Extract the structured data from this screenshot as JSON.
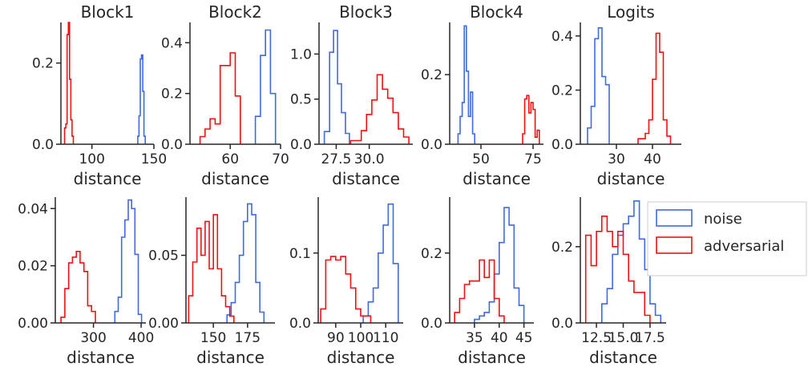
{
  "figure": {
    "legend": {
      "placement": "right",
      "entries": [
        {
          "label": "noise",
          "color": "#4169e1"
        },
        {
          "label": "adversarial",
          "color": "#ee1111"
        }
      ]
    }
  },
  "chart_data": [
    {
      "type": "histogram-step",
      "title": "Block1",
      "xlabel": "distance",
      "ylabel": "",
      "xlim": [
        75,
        150
      ],
      "ylim": [
        0,
        0.3
      ],
      "xticks": [
        100,
        150
      ],
      "yticks": [
        0.0,
        0.2
      ],
      "xtick_labels": [
        "100",
        "150"
      ],
      "ytick_labels": [
        "0.0",
        "0.2"
      ],
      "series": [
        {
          "name": "noise",
          "color": "#4169e1",
          "edges": [
            137,
            138,
            139,
            140,
            141,
            142,
            143
          ],
          "values": [
            0.02,
            0.07,
            0.21,
            0.22,
            0.13,
            0.02
          ]
        },
        {
          "name": "adversarial",
          "color": "#ee1111",
          "edges": [
            78,
            79,
            80,
            81,
            82,
            83,
            84,
            85
          ],
          "values": [
            0.04,
            0.05,
            0.27,
            0.3,
            0.16,
            0.06,
            0.02
          ]
        }
      ]
    },
    {
      "type": "histogram-step",
      "title": "Block2",
      "xlabel": "distance",
      "ylabel": "",
      "xlim": [
        52,
        70
      ],
      "ylim": [
        0,
        0.48
      ],
      "xticks": [
        60,
        70
      ],
      "yticks": [
        0.0,
        0.2,
        0.4
      ],
      "xtick_labels": [
        "60",
        "70"
      ],
      "ytick_labels": [
        "0.0",
        "0.2",
        "0.4"
      ],
      "series": [
        {
          "name": "noise",
          "color": "#4169e1",
          "edges": [
            65,
            66,
            67,
            68,
            69
          ],
          "values": [
            0.11,
            0.35,
            0.45,
            0.2
          ]
        },
        {
          "name": "adversarial",
          "color": "#ee1111",
          "edges": [
            54,
            55,
            56,
            57,
            58,
            59,
            60,
            61,
            62
          ],
          "values": [
            0.03,
            0.06,
            0.1,
            0.08,
            0.31,
            0.31,
            0.36,
            0.19
          ]
        }
      ]
    },
    {
      "type": "histogram-step",
      "title": "Block3",
      "xlabel": "distance",
      "ylabel": "",
      "xlim": [
        26.2,
        33.3
      ],
      "ylim": [
        0,
        1.35
      ],
      "xticks": [
        27.5,
        30.0
      ],
      "yticks": [
        0.0,
        0.5,
        1.0
      ],
      "xtick_labels": [
        "27.5",
        "30.0"
      ],
      "ytick_labels": [
        "0.0",
        "0.5",
        "1.0"
      ],
      "series": [
        {
          "name": "noise",
          "color": "#4169e1",
          "edges": [
            26.6,
            27.0,
            27.3,
            27.6,
            27.9,
            28.2,
            28.5
          ],
          "values": [
            0.14,
            1.02,
            1.26,
            0.67,
            0.35,
            0.12
          ]
        },
        {
          "name": "adversarial",
          "color": "#ee1111",
          "edges": [
            28.6,
            29.0,
            29.4,
            29.8,
            30.2,
            30.6,
            31.0,
            31.4,
            31.8,
            32.2,
            32.6,
            33.0
          ],
          "values": [
            0.04,
            0.04,
            0.15,
            0.33,
            0.49,
            0.77,
            0.61,
            0.51,
            0.35,
            0.17,
            0.08
          ]
        }
      ]
    },
    {
      "type": "histogram-step",
      "title": "Block4",
      "xlabel": "distance",
      "ylabel": "",
      "xlim": [
        35,
        80
      ],
      "ylim": [
        0,
        0.35
      ],
      "xticks": [
        50,
        75
      ],
      "yticks": [
        0.0,
        0.2
      ],
      "xtick_labels": [
        "50",
        "75"
      ],
      "ytick_labels": [
        "0.0",
        "0.2"
      ],
      "series": [
        {
          "name": "noise",
          "color": "#4169e1",
          "edges": [
            39,
            40,
            41,
            42,
            43,
            44,
            45,
            46,
            47
          ],
          "values": [
            0.03,
            0.08,
            0.12,
            0.34,
            0.21,
            0.08,
            0.15,
            0.03
          ]
        },
        {
          "name": "adversarial",
          "color": "#ee1111",
          "edges": [
            70,
            71,
            72,
            73,
            74,
            75,
            76,
            77,
            78
          ],
          "values": [
            0.03,
            0.13,
            0.14,
            0.09,
            0.12,
            0.1,
            0.02,
            0.04
          ]
        }
      ]
    },
    {
      "type": "histogram-step",
      "title": "Logits",
      "xlabel": "distance",
      "ylabel": "",
      "xlim": [
        20,
        48
      ],
      "ylim": [
        0,
        0.45
      ],
      "xticks": [
        30,
        40
      ],
      "yticks": [
        0.0,
        0.2,
        0.4
      ],
      "xtick_labels": [
        "30",
        "40"
      ],
      "ytick_labels": [
        "0.0",
        "0.2",
        "0.4"
      ],
      "series": [
        {
          "name": "noise",
          "color": "#4169e1",
          "edges": [
            22,
            23,
            24,
            25,
            26,
            27,
            28
          ],
          "values": [
            0.06,
            0.14,
            0.39,
            0.43,
            0.25,
            0.22
          ]
        },
        {
          "name": "adversarial",
          "color": "#ee1111",
          "edges": [
            36,
            37,
            38,
            39,
            40,
            41,
            42,
            43,
            44,
            45
          ],
          "values": [
            0.02,
            0.02,
            0.04,
            0.09,
            0.24,
            0.41,
            0.34,
            0.09,
            0.03
          ]
        }
      ]
    },
    {
      "type": "histogram-step",
      "title": "",
      "xlabel": "distance",
      "ylabel": "",
      "xlim": [
        220,
        410
      ],
      "ylim": [
        0,
        0.044
      ],
      "xticks": [
        300,
        400
      ],
      "yticks": [
        0.0,
        0.02,
        0.04
      ],
      "xtick_labels": [
        "300",
        "400"
      ],
      "ytick_labels": [
        "0.00",
        "0.02",
        "0.04"
      ],
      "series": [
        {
          "name": "noise",
          "color": "#4169e1",
          "edges": [
            345,
            352,
            359,
            366,
            373,
            380,
            387,
            394,
            401
          ],
          "values": [
            0.004,
            0.009,
            0.03,
            0.036,
            0.043,
            0.04,
            0.024,
            0.003
          ]
        },
        {
          "name": "adversarial",
          "color": "#ee1111",
          "edges": [
            232,
            240,
            248,
            256,
            264,
            272,
            280,
            288,
            296,
            304
          ],
          "values": [
            0.002,
            0.012,
            0.021,
            0.023,
            0.025,
            0.021,
            0.018,
            0.006,
            0.004
          ]
        }
      ]
    },
    {
      "type": "histogram-step",
      "title": "",
      "xlabel": "distance",
      "ylabel": "",
      "xlim": [
        130,
        195
      ],
      "ylim": [
        0,
        0.093
      ],
      "xticks": [
        150,
        175
      ],
      "yticks": [
        0.0,
        0.05
      ],
      "xtick_labels": [
        "150",
        "175"
      ],
      "ytick_labels": [
        "0.00",
        "0.05"
      ],
      "series": [
        {
          "name": "noise",
          "color": "#4169e1",
          "edges": [
            160,
            163,
            166,
            169,
            172,
            175,
            178,
            181,
            184,
            187
          ],
          "values": [
            0.006,
            0.015,
            0.03,
            0.05,
            0.075,
            0.088,
            0.08,
            0.03,
            0.008
          ]
        },
        {
          "name": "adversarial",
          "color": "#ee1111",
          "edges": [
            132,
            135,
            138,
            141,
            144,
            147,
            150,
            153,
            156,
            159,
            162,
            165
          ],
          "values": [
            0.02,
            0.045,
            0.07,
            0.05,
            0.075,
            0.04,
            0.08,
            0.04,
            0.02,
            0.012,
            0.005
          ]
        }
      ]
    },
    {
      "type": "histogram-step",
      "title": "",
      "xlabel": "distance",
      "ylabel": "",
      "xlim": [
        83,
        117
      ],
      "ylim": [
        0,
        0.18
      ],
      "xticks": [
        90,
        100,
        110
      ],
      "yticks": [
        0.0,
        0.1
      ],
      "xtick_labels": [
        "90",
        "100",
        "110"
      ],
      "ytick_labels": [
        "0.0",
        "0.1"
      ],
      "series": [
        {
          "name": "noise",
          "color": "#4169e1",
          "edges": [
            101,
            103,
            105,
            107,
            109,
            111,
            113,
            115
          ],
          "values": [
            0.01,
            0.03,
            0.05,
            0.1,
            0.14,
            0.17,
            0.085
          ]
        },
        {
          "name": "adversarial",
          "color": "#ee1111",
          "edges": [
            84,
            86,
            88,
            90,
            92,
            94,
            96,
            98,
            100,
            102,
            104
          ],
          "values": [
            0.02,
            0.09,
            0.095,
            0.09,
            0.095,
            0.07,
            0.05,
            0.02,
            0.01,
            0.01
          ]
        }
      ]
    },
    {
      "type": "histogram-step",
      "title": "",
      "xlabel": "distance",
      "ylabel": "",
      "xlim": [
        30,
        47
      ],
      "ylim": [
        0,
        0.36
      ],
      "xticks": [
        35,
        40,
        45
      ],
      "yticks": [
        0.0,
        0.2
      ],
      "xtick_labels": [
        "35",
        "40",
        "45"
      ],
      "ytick_labels": [
        "0.0",
        "0.2"
      ],
      "series": [
        {
          "name": "noise",
          "color": "#4169e1",
          "edges": [
            35,
            36,
            37,
            38,
            39,
            40,
            41,
            42,
            43,
            44,
            45
          ],
          "values": [
            0.01,
            0.02,
            0.03,
            0.06,
            0.14,
            0.23,
            0.33,
            0.28,
            0.1,
            0.05
          ]
        },
        {
          "name": "adversarial",
          "color": "#ee1111",
          "edges": [
            31,
            32,
            33,
            34,
            35,
            36,
            37,
            38,
            39,
            40,
            41
          ],
          "values": [
            0.03,
            0.07,
            0.11,
            0.12,
            0.12,
            0.18,
            0.13,
            0.18,
            0.07,
            0.02
          ]
        }
      ]
    },
    {
      "type": "histogram-step",
      "title": "",
      "xlabel": "distance",
      "ylabel": "",
      "xlim": [
        11,
        19
      ],
      "ylim": [
        0,
        0.33
      ],
      "xticks": [
        12.5,
        15.0,
        17.5
      ],
      "yticks": [
        0.0,
        0.2
      ],
      "xtick_labels": [
        "12.5",
        "15.0",
        "17.5"
      ],
      "ytick_labels": [
        "0.0",
        "0.2"
      ],
      "series": [
        {
          "name": "noise",
          "color": "#4169e1",
          "edges": [
            13.0,
            13.5,
            14.0,
            14.5,
            15.0,
            15.5,
            16.0,
            16.5,
            17.0,
            17.5,
            18.0,
            18.5
          ],
          "values": [
            0.05,
            0.09,
            0.18,
            0.23,
            0.26,
            0.28,
            0.32,
            0.22,
            0.14,
            0.05,
            0.02
          ]
        },
        {
          "name": "adversarial",
          "color": "#ee1111",
          "edges": [
            11.5,
            12.0,
            12.5,
            13.0,
            13.5,
            14.0,
            14.5,
            15.0,
            15.5,
            16.0,
            16.5,
            17.0,
            17.5
          ],
          "values": [
            0.23,
            0.15,
            0.24,
            0.28,
            0.24,
            0.2,
            0.24,
            0.18,
            0.11,
            0.08,
            0.08,
            0.02
          ]
        }
      ]
    }
  ]
}
